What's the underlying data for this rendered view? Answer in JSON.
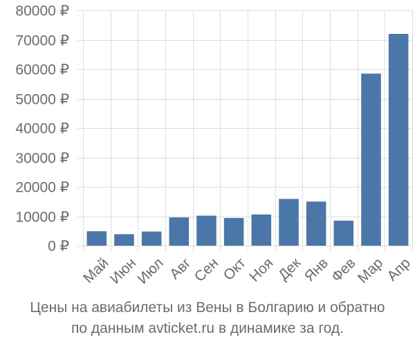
{
  "chart_data": {
    "type": "bar",
    "categories": [
      "Май",
      "Июн",
      "Июл",
      "Авг",
      "Сен",
      "Окт",
      "Ноя",
      "Дек",
      "Янв",
      "Фев",
      "Мар",
      "Апр"
    ],
    "values": [
      4900,
      3900,
      4800,
      9600,
      10200,
      9400,
      10600,
      15900,
      15000,
      8500,
      58500,
      72000
    ],
    "ylim": [
      0,
      80000
    ],
    "yticks": [
      0,
      10000,
      20000,
      30000,
      40000,
      50000,
      60000,
      70000,
      80000
    ],
    "ytick_labels": [
      "0 ₽",
      "10000 ₽",
      "20000 ₽",
      "30000 ₽",
      "40000 ₽",
      "50000 ₽",
      "60000 ₽",
      "70000 ₽",
      "80000 ₽"
    ],
    "grid": true,
    "bar_color": "#4a76a8",
    "grid_color": "#dddddd"
  },
  "caption": {
    "line1": "Цены на авиабилеты из Вены в Болгарию и обратно",
    "line2": "по данным avticket.ru в динамике за год."
  }
}
